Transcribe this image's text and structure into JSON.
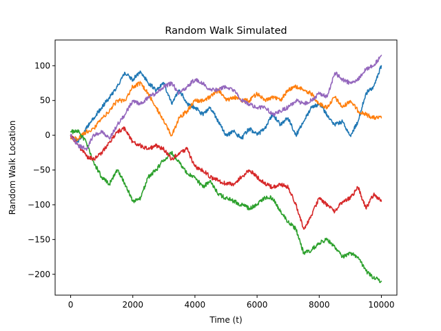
{
  "chart_data": {
    "type": "line",
    "title": "Random Walk Simulated",
    "xlabel": "Time (t)",
    "ylabel": "Random Walk Location",
    "xlim": [
      -500,
      10500
    ],
    "ylim": [
      -230,
      137
    ],
    "xticks": [
      0,
      2000,
      4000,
      6000,
      8000,
      10000
    ],
    "xtick_labels": [
      "0",
      "2000",
      "4000",
      "6000",
      "8000",
      "10000"
    ],
    "yticks": [
      -200,
      -150,
      -100,
      -50,
      0,
      50,
      100
    ],
    "ytick_labels": [
      "−200",
      "−150",
      "−100",
      "−50",
      "0",
      "50",
      "100"
    ],
    "grid": false,
    "legend": "none",
    "series": [
      {
        "color": "#1f77b4",
        "x": [
          0,
          250,
          500,
          750,
          1000,
          1250,
          1500,
          1750,
          2000,
          2250,
          2500,
          2750,
          3000,
          3250,
          3500,
          3750,
          4000,
          4250,
          4500,
          4750,
          5000,
          5250,
          5500,
          5750,
          6000,
          6250,
          6500,
          6750,
          7000,
          7250,
          7500,
          7750,
          8000,
          8250,
          8500,
          8750,
          9000,
          9250,
          9500,
          9750,
          10000
        ],
        "values": [
          0,
          -10,
          10,
          25,
          40,
          55,
          70,
          90,
          80,
          92,
          75,
          65,
          75,
          45,
          65,
          45,
          40,
          30,
          40,
          20,
          0,
          5,
          -5,
          10,
          0,
          10,
          30,
          15,
          25,
          0,
          20,
          40,
          45,
          30,
          15,
          20,
          0,
          20,
          60,
          70,
          100
        ]
      },
      {
        "color": "#ff7f0e",
        "x": [
          0,
          250,
          500,
          750,
          1000,
          1250,
          1500,
          1750,
          2000,
          2250,
          2500,
          2750,
          3000,
          3250,
          3500,
          3750,
          4000,
          4250,
          4500,
          4750,
          5000,
          5250,
          5500,
          5750,
          6000,
          6250,
          6500,
          6750,
          7000,
          7250,
          7500,
          7750,
          8000,
          8250,
          8500,
          8750,
          9000,
          9250,
          9500,
          9750,
          10000
        ],
        "values": [
          -5,
          -5,
          5,
          10,
          25,
          35,
          50,
          50,
          70,
          75,
          60,
          40,
          20,
          0,
          25,
          35,
          50,
          50,
          55,
          65,
          50,
          55,
          50,
          50,
          60,
          50,
          55,
          50,
          65,
          70,
          65,
          60,
          45,
          40,
          55,
          40,
          50,
          35,
          30,
          25,
          25
        ]
      },
      {
        "color": "#2ca02c",
        "x": [
          0,
          250,
          500,
          750,
          1000,
          1250,
          1500,
          1750,
          2000,
          2250,
          2500,
          2750,
          3000,
          3250,
          3500,
          3750,
          4000,
          4250,
          4500,
          4750,
          5000,
          5250,
          5500,
          5750,
          6000,
          6250,
          6500,
          6750,
          7000,
          7250,
          7500,
          7750,
          8000,
          8250,
          8500,
          8750,
          9000,
          9250,
          9500,
          9750,
          10000
        ],
        "values": [
          5,
          5,
          -10,
          -40,
          -60,
          -70,
          -50,
          -70,
          -95,
          -90,
          -60,
          -50,
          -35,
          -25,
          -40,
          -55,
          -60,
          -75,
          -65,
          -85,
          -90,
          -95,
          -100,
          -105,
          -100,
          -90,
          -90,
          -110,
          -125,
          -135,
          -170,
          -165,
          -155,
          -150,
          -160,
          -175,
          -170,
          -175,
          -195,
          -205,
          -210
        ]
      },
      {
        "color": "#d62728",
        "x": [
          0,
          250,
          500,
          750,
          1000,
          1250,
          1500,
          1750,
          2000,
          2250,
          2500,
          2750,
          3000,
          3250,
          3500,
          3750,
          4000,
          4250,
          4500,
          4750,
          5000,
          5250,
          5500,
          5750,
          6000,
          6250,
          6500,
          6750,
          7000,
          7250,
          7500,
          7750,
          8000,
          8250,
          8500,
          8750,
          9000,
          9250,
          9500,
          9750,
          10000
        ],
        "values": [
          0,
          -15,
          -30,
          -35,
          -25,
          -10,
          5,
          10,
          -10,
          -15,
          -20,
          -15,
          -20,
          -35,
          -25,
          -20,
          -45,
          -50,
          -60,
          -65,
          -70,
          -70,
          -60,
          -50,
          -60,
          -70,
          -75,
          -70,
          -75,
          -100,
          -135,
          -115,
          -90,
          -100,
          -110,
          -95,
          -90,
          -75,
          -105,
          -85,
          -95
        ]
      },
      {
        "color": "#9467bd",
        "x": [
          0,
          250,
          500,
          750,
          1000,
          1250,
          1500,
          1750,
          2000,
          2250,
          2500,
          2750,
          3000,
          3250,
          3500,
          3750,
          4000,
          4250,
          4500,
          4750,
          5000,
          5250,
          5500,
          5750,
          6000,
          6250,
          6500,
          6750,
          7000,
          7250,
          7500,
          7750,
          8000,
          8250,
          8500,
          8750,
          9000,
          9250,
          9500,
          9750,
          10000
        ],
        "values": [
          0,
          -15,
          -20,
          0,
          5,
          -5,
          15,
          30,
          50,
          45,
          55,
          60,
          70,
          75,
          60,
          70,
          80,
          75,
          65,
          65,
          70,
          65,
          50,
          45,
          40,
          40,
          30,
          35,
          40,
          50,
          45,
          50,
          60,
          55,
          90,
          80,
          75,
          80,
          95,
          100,
          115
        ]
      }
    ]
  }
}
